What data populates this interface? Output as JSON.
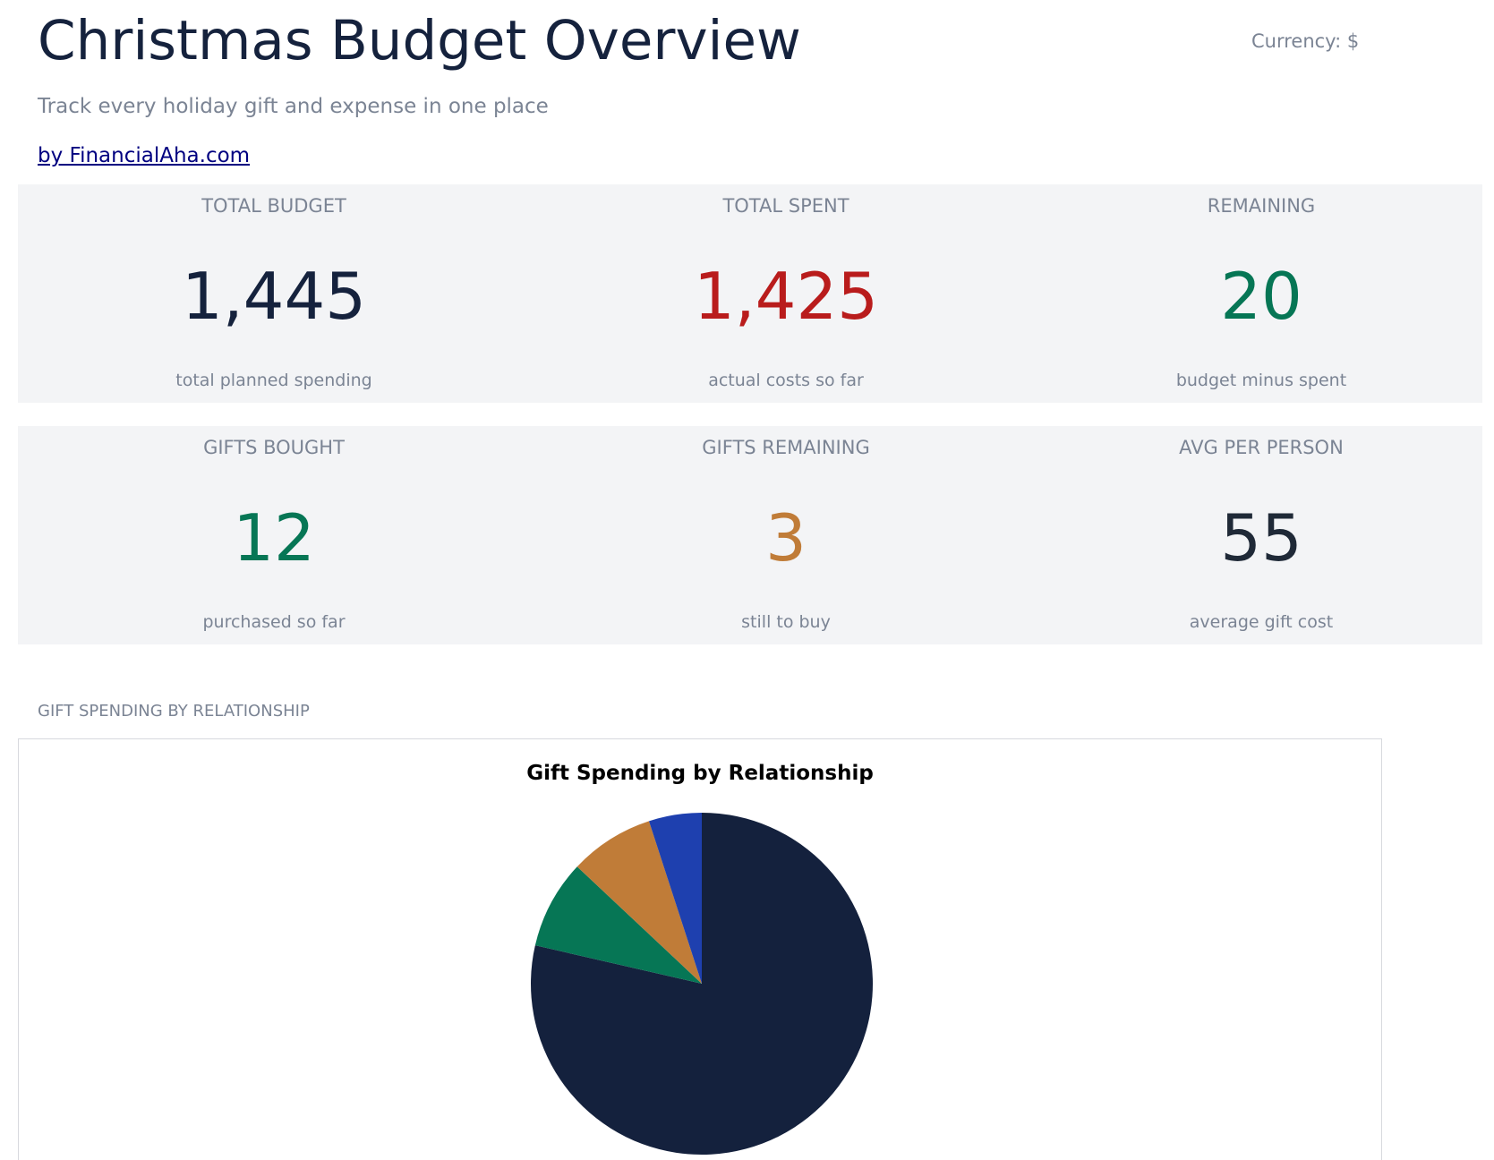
{
  "header": {
    "title": "Christmas Budget Overview",
    "currency": "Currency: $",
    "subtitle": "Track every holiday gift and expense in one place",
    "author_link": "by FinancialAha.com"
  },
  "kpis_row1": [
    {
      "label": "TOTAL BUDGET",
      "value": "1,445",
      "caption": "total planned spending",
      "color": "#15223d"
    },
    {
      "label": "TOTAL SPENT",
      "value": "1,425",
      "caption": "actual costs so far",
      "color": "#b91c1c"
    },
    {
      "label": "REMAINING",
      "value": "20",
      "caption": "budget minus spent",
      "color": "#067655"
    }
  ],
  "kpis_row2": [
    {
      "label": "GIFTS BOUGHT",
      "value": "12",
      "caption": "purchased so far",
      "color": "#067655"
    },
    {
      "label": "GIFTS REMAINING",
      "value": "3",
      "caption": "still to buy",
      "color": "#c07c38"
    },
    {
      "label": "AVG PER PERSON",
      "value": "55",
      "caption": "average gift cost",
      "color": "#1f2937"
    }
  ],
  "section": {
    "label": "GIFT SPENDING BY RELATIONSHIP"
  },
  "chart_data": {
    "type": "pie",
    "title": "Gift Spending by Relationship",
    "values": [
      78.6,
      8.4,
      8.0,
      5.0
    ],
    "colors": [
      "#14213d",
      "#067655",
      "#c07c38",
      "#1e40af"
    ],
    "start_angle_deg": 90,
    "direction": "clockwise"
  }
}
